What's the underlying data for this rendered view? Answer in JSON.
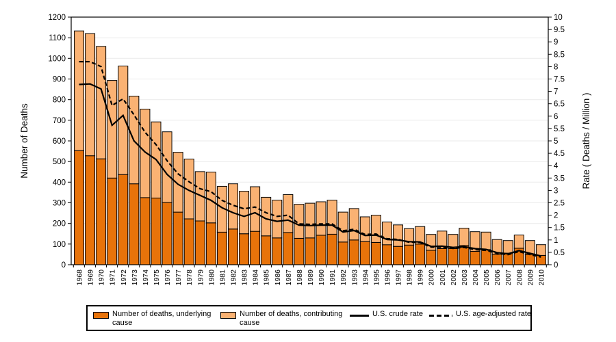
{
  "page": {
    "background": "#FFFFFF"
  },
  "chart_data": {
    "type": "bar",
    "subtype": "stacked-bar-with-lines",
    "categories": [
      1968,
      1969,
      1970,
      1971,
      1972,
      1973,
      1974,
      1975,
      1976,
      1977,
      1978,
      1979,
      1980,
      1981,
      1982,
      1983,
      1984,
      1985,
      1986,
      1987,
      1988,
      1989,
      1990,
      1991,
      1992,
      1993,
      1994,
      1995,
      1996,
      1997,
      1998,
      1999,
      2000,
      2001,
      2002,
      2003,
      2004,
      2005,
      2006,
      2007,
      2008,
      2009,
      2010
    ],
    "left_axis": {
      "label": "Number of Deaths",
      "min": 0,
      "max": 1200,
      "tick_step": 100
    },
    "right_axis": {
      "label": "Rate ( Deaths / Million )",
      "min": 0,
      "max": 10,
      "tick_step": 0.5
    },
    "grid": {
      "show": true,
      "color": "#EAEAEA"
    },
    "legend_position": "bottom",
    "series": [
      {
        "name": "Number of deaths, underlying cause",
        "type": "bar",
        "stack": "deaths",
        "axis": "left",
        "color": "#E8730A",
        "border_color": "#000000",
        "values": [
          553,
          528,
          513,
          420,
          437,
          392,
          325,
          323,
          302,
          255,
          222,
          212,
          203,
          158,
          173,
          150,
          162,
          140,
          130,
          156,
          128,
          130,
          143,
          148,
          110,
          120,
          112,
          108,
          97,
          89,
          95,
          100,
          70,
          78,
          78,
          93,
          65,
          73,
          50,
          56,
          80,
          50,
          45
        ]
      },
      {
        "name": "Number of deaths, contributing cause",
        "type": "bar",
        "stack": "deaths",
        "axis": "left",
        "color": "#FAB273",
        "border_color": "#000000",
        "values": [
          580,
          592,
          545,
          473,
          526,
          425,
          429,
          369,
          342,
          290,
          290,
          239,
          246,
          222,
          219,
          206,
          216,
          187,
          183,
          184,
          165,
          168,
          162,
          165,
          145,
          152,
          120,
          132,
          110,
          104,
          80,
          85,
          77,
          85,
          69,
          84,
          95,
          85,
          72,
          61,
          64,
          67,
          52
        ]
      },
      {
        "name": "U.S. crude rate",
        "type": "line",
        "line_style": "solid",
        "axis": "right",
        "color": "#000000",
        "values": [
          7.28,
          7.3,
          7.1,
          5.63,
          6.03,
          5.0,
          4.55,
          4.25,
          3.65,
          3.25,
          3.0,
          2.8,
          2.6,
          2.3,
          2.1,
          1.95,
          2.1,
          1.85,
          1.75,
          1.8,
          1.6,
          1.58,
          1.6,
          1.6,
          1.32,
          1.38,
          1.18,
          1.2,
          1.02,
          1.0,
          0.93,
          0.92,
          0.74,
          0.75,
          0.7,
          0.73,
          0.65,
          0.62,
          0.49,
          0.44,
          0.57,
          0.46,
          0.35
        ]
      },
      {
        "name": "U.S. age-adjusted rate",
        "type": "line",
        "line_style": "dashed",
        "axis": "right",
        "color": "#000000",
        "values": [
          8.2,
          8.2,
          8.0,
          6.43,
          6.7,
          6.05,
          5.35,
          4.85,
          4.2,
          3.67,
          3.35,
          3.07,
          2.95,
          2.6,
          2.4,
          2.26,
          2.33,
          2.1,
          1.95,
          2.0,
          1.65,
          1.63,
          1.65,
          1.65,
          1.37,
          1.43,
          1.22,
          1.24,
          1.05,
          1.02,
          0.91,
          0.9,
          0.71,
          0.71,
          0.66,
          0.7,
          0.61,
          0.58,
          0.46,
          0.41,
          0.53,
          0.41,
          0.31
        ]
      }
    ]
  }
}
